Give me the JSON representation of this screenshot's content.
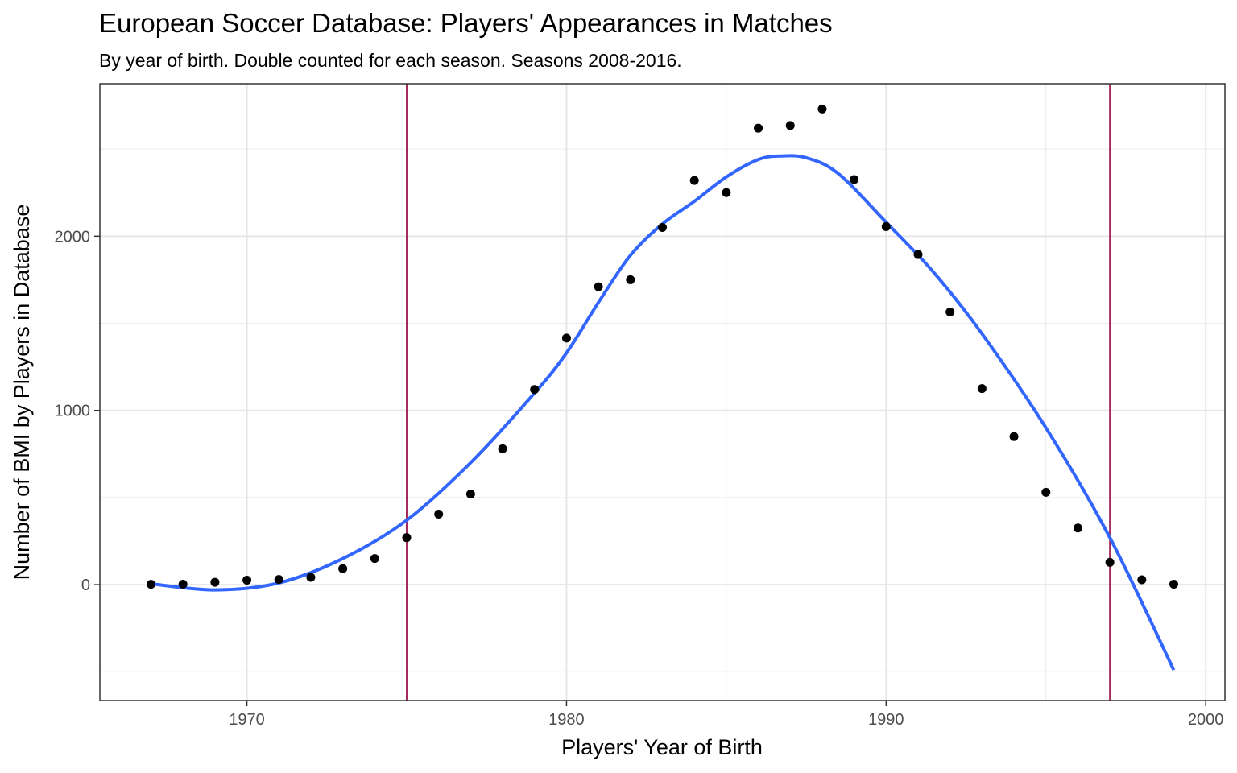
{
  "title": "European Soccer Database: Players' Appearances in Matches",
  "subtitle": "By year of birth. Double counted for each season. Seasons 2008-2016.",
  "chart_data": {
    "type": "scatter",
    "xlabel": "Players' Year of Birth",
    "ylabel": "Number of BMI by  Players in Database",
    "xlim": [
      1965.4,
      2000.6
    ],
    "ylim": [
      -665,
      2875
    ],
    "x_ticks": [
      1970,
      1980,
      1990,
      2000
    ],
    "x_minor": [
      1965,
      1975,
      1985,
      1995
    ],
    "y_ticks": [
      0,
      1000,
      2000
    ],
    "y_minor": [
      -500,
      500,
      1500,
      2500
    ],
    "grid": true,
    "series": [
      {
        "type": "points",
        "color": "#000000",
        "x": [
          1967,
          1968,
          1969,
          1970,
          1971,
          1972,
          1973,
          1974,
          1975,
          1976,
          1977,
          1978,
          1979,
          1980,
          1981,
          1982,
          1983,
          1984,
          1985,
          1986,
          1987,
          1988,
          1989,
          1990,
          1991,
          1992,
          1993,
          1994,
          1995,
          1996,
          1997,
          1998,
          1999
        ],
        "y": [
          2,
          3,
          14,
          26,
          30,
          42,
          92,
          150,
          270,
          405,
          520,
          780,
          1120,
          1415,
          1710,
          1750,
          2050,
          2320,
          2250,
          2620,
          2635,
          2730,
          2325,
          2055,
          1895,
          1565,
          1125,
          850,
          530,
          325,
          128,
          28,
          3
        ]
      },
      {
        "type": "smooth",
        "color": "#3366FF",
        "x": [
          1967,
          1969,
          1971,
          1973,
          1975,
          1977,
          1979,
          1980,
          1981,
          1982,
          1983,
          1984,
          1985,
          1986,
          1986.7,
          1987.5,
          1988.5,
          1990,
          1991.5,
          1993,
          1995,
          1997,
          1999
        ],
        "y": [
          5,
          -30,
          10,
          150,
          370,
          700,
          1100,
          1330,
          1620,
          1890,
          2070,
          2200,
          2340,
          2440,
          2460,
          2450,
          2360,
          2080,
          1790,
          1440,
          900,
          270,
          -490
        ]
      }
    ],
    "reference_lines": [
      {
        "axis": "x",
        "value": 1975,
        "color": "#A52A5F"
      },
      {
        "axis": "x",
        "value": 1997,
        "color": "#A52A5F"
      }
    ]
  }
}
